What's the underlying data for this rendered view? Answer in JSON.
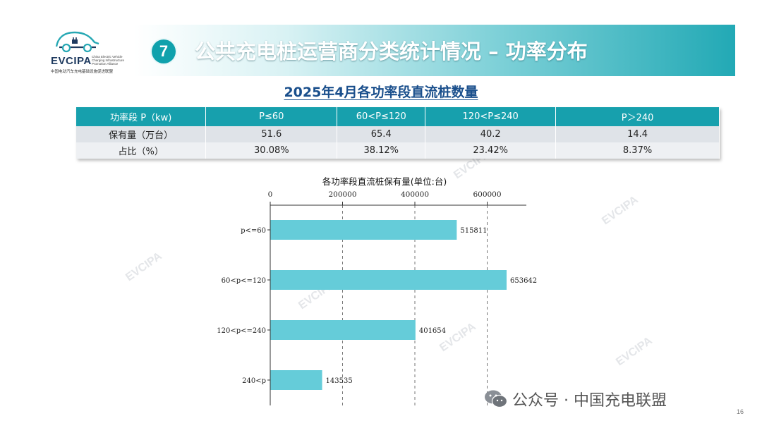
{
  "logo": {
    "brand": "EVCIPA",
    "english": "China Electric Vehicle Charging Infrastructure Promotion Alliance",
    "chinese": "中国电动汽车充电基础设施促进联盟"
  },
  "header": {
    "number": "7",
    "title": "公共充电桩运营商分类统计情况 – 功率分布"
  },
  "subtitle": "2025年4月各功率段直流桩数量",
  "table": {
    "headers": [
      "功率段 P（kw)",
      "P≤60",
      "60<P≤120",
      "120<P≤240",
      "P＞240"
    ],
    "rows": [
      [
        "保有量（万台）",
        "51.6",
        "65.4",
        "40.2",
        "14.4"
      ],
      [
        "占比（%）",
        "30.08%",
        "38.12%",
        "23.42%",
        "8.37%"
      ]
    ]
  },
  "chart_data": {
    "type": "bar",
    "orientation": "horizontal",
    "title": "各功率段直流桩保有量(单位:台)",
    "categories": [
      "p<=60",
      "60<p<=120",
      "120<p<=240",
      "240<p"
    ],
    "values": [
      515811,
      653642,
      401654,
      143535
    ],
    "xlim": [
      0,
      700000
    ],
    "xticks": [
      0,
      200000,
      400000,
      600000
    ],
    "xtick_labels": [
      "0",
      "200000",
      "400000",
      "600000"
    ],
    "x_axis_position": "top",
    "grid": true,
    "bar_color": "#65ccd9"
  },
  "footer": {
    "wechat": "公众号 · 中国充电联盟",
    "page": "16"
  },
  "watermark": "EVCIPA"
}
